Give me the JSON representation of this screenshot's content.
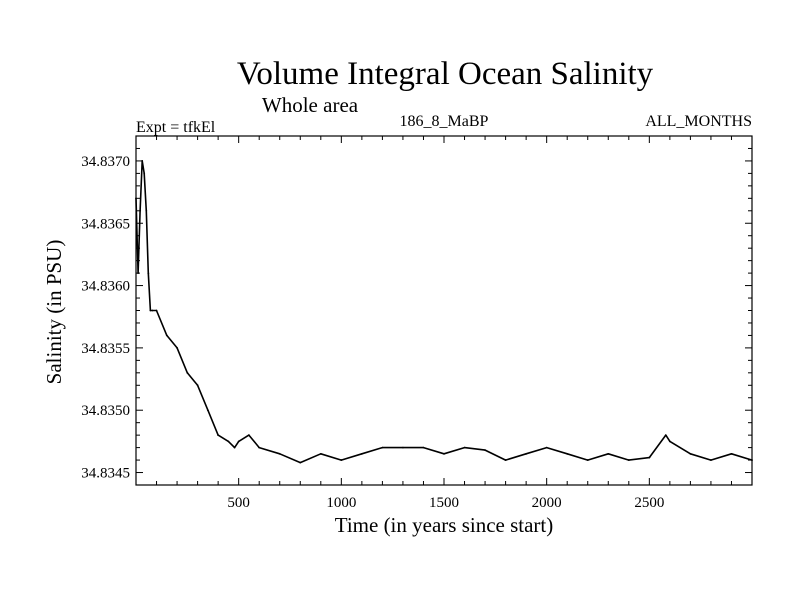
{
  "header": {
    "title": "Volume Integral Ocean Salinity",
    "subtitle": "Whole area",
    "experiment": "Expt = tfkEl",
    "run_id": "186_8_MaBP",
    "months": "ALL_MONTHS"
  },
  "chart_data": {
    "type": "line",
    "title": "Volume Integral Ocean Salinity",
    "subtitle": "Whole area",
    "xlabel": "Time (in years since start)",
    "ylabel": "Salinity (in PSU)",
    "xlim": [
      0,
      3000
    ],
    "ylim": [
      34.8344,
      34.8372
    ],
    "xticks": [
      500,
      1000,
      1500,
      2000,
      2500
    ],
    "yticks": [
      34.8345,
      34.835,
      34.8355,
      34.836,
      34.8365,
      34.837
    ],
    "ytick_labels": [
      "34.8345",
      "34.8350",
      "34.8355",
      "34.8360",
      "34.8365",
      "34.8370"
    ],
    "grid": false,
    "series": [
      {
        "color": "#000000",
        "x": [
          0,
          10,
          20,
          30,
          40,
          50,
          60,
          70,
          80,
          100,
          150,
          200,
          250,
          300,
          350,
          400,
          450,
          480,
          500,
          550,
          600,
          700,
          800,
          900,
          1000,
          1100,
          1200,
          1300,
          1400,
          1500,
          1600,
          1700,
          1800,
          1900,
          2000,
          2100,
          2200,
          2300,
          2400,
          2500,
          2580,
          2600,
          2700,
          2800,
          2900,
          3000
        ],
        "y": [
          34.8367,
          34.8361,
          34.8366,
          34.837,
          34.8369,
          34.8366,
          34.8361,
          34.8358,
          34.8358,
          34.8358,
          34.8356,
          34.8355,
          34.8353,
          34.8352,
          34.835,
          34.8348,
          34.83475,
          34.8347,
          34.83475,
          34.8348,
          34.8347,
          34.83465,
          34.83458,
          34.83465,
          34.8346,
          34.83465,
          34.8347,
          34.8347,
          34.8347,
          34.83465,
          34.8347,
          34.83468,
          34.8346,
          34.83465,
          34.8347,
          34.83465,
          34.8346,
          34.83465,
          34.8346,
          34.83462,
          34.8348,
          34.83475,
          34.83465,
          34.8346,
          34.83465,
          34.8346
        ]
      }
    ]
  }
}
